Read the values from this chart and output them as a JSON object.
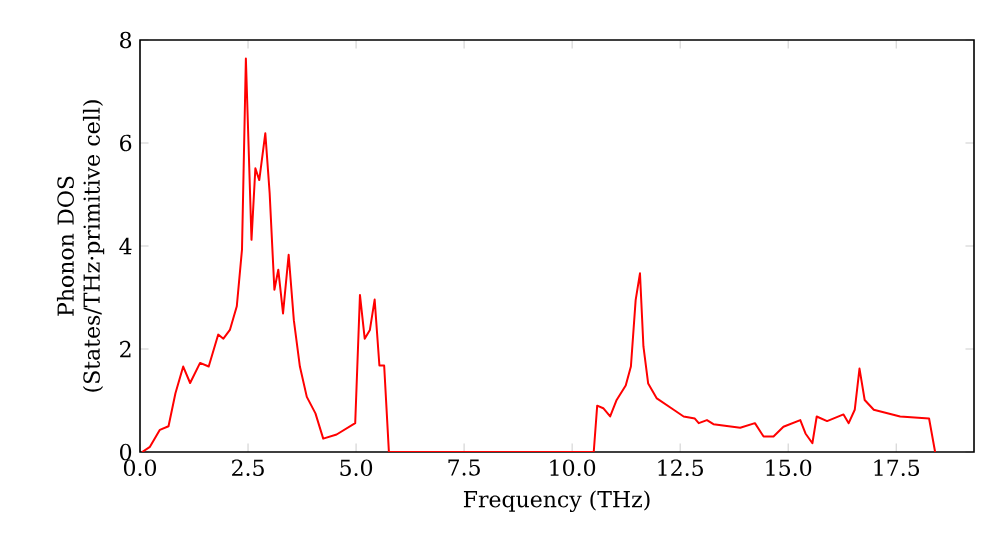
{
  "chart_data": {
    "type": "line",
    "xlabel": "Frequency (THz)",
    "ylabel": "Phonon DOS (States/THz·primitive cell)",
    "xlim": [
      0,
      19.3
    ],
    "ylim": [
      0,
      8
    ],
    "xticks": [
      {
        "value": 0,
        "label": "0.0"
      },
      2.5,
      {
        "value": 5,
        "label": "5.0"
      },
      7.5,
      {
        "value": 10,
        "label": "10.0"
      },
      12.5,
      {
        "value": 15,
        "label": "15.0"
      },
      17.5
    ],
    "yticks": [
      0,
      2,
      4,
      6,
      8
    ],
    "grid": false,
    "marker": "none",
    "line_style": "solid",
    "series": [
      {
        "color": "#ff0000",
        "x": [
          0.05,
          0.23,
          0.46,
          0.66,
          0.82,
          1.0,
          1.16,
          1.39,
          1.59,
          1.81,
          1.93,
          2.08,
          2.24,
          2.36,
          2.45,
          2.58,
          2.67,
          2.76,
          2.9,
          3.0,
          3.11,
          3.2,
          3.31,
          3.44,
          3.56,
          3.7,
          3.86,
          4.06,
          4.24,
          4.55,
          4.98,
          5.09,
          5.2,
          5.32,
          5.43,
          5.54,
          5.65,
          5.76,
          10.5,
          10.58,
          10.72,
          10.88,
          11.03,
          11.24,
          11.36,
          11.47,
          11.57,
          11.65,
          11.76,
          11.96,
          12.35,
          12.58,
          12.84,
          12.93,
          13.12,
          13.27,
          13.89,
          14.23,
          14.43,
          14.66,
          14.89,
          15.28,
          15.4,
          15.56,
          15.66,
          15.9,
          16.28,
          16.4,
          16.54,
          16.65,
          16.77,
          16.98,
          17.59,
          18.26,
          18.4
        ],
        "values": [
          0,
          0.1,
          0.43,
          0.5,
          1.14,
          1.66,
          1.34,
          1.73,
          1.66,
          2.28,
          2.2,
          2.37,
          2.83,
          3.93,
          7.64,
          4.12,
          5.51,
          5.28,
          6.19,
          5.03,
          3.15,
          3.54,
          2.69,
          3.83,
          2.56,
          1.66,
          1.07,
          0.75,
          0.26,
          0.34,
          0.56,
          3.05,
          2.2,
          2.37,
          2.96,
          1.68,
          1.68,
          0,
          0,
          0.9,
          0.85,
          0.69,
          1.01,
          1.29,
          1.66,
          2.95,
          3.47,
          2.05,
          1.33,
          1.04,
          0.82,
          0.69,
          0.65,
          0.56,
          0.62,
          0.54,
          0.47,
          0.56,
          0.3,
          0.3,
          0.49,
          0.62,
          0.36,
          0.17,
          0.69,
          0.6,
          0.73,
          0.56,
          0.82,
          1.62,
          1.01,
          0.82,
          0.69,
          0.65,
          0
        ]
      }
    ]
  }
}
